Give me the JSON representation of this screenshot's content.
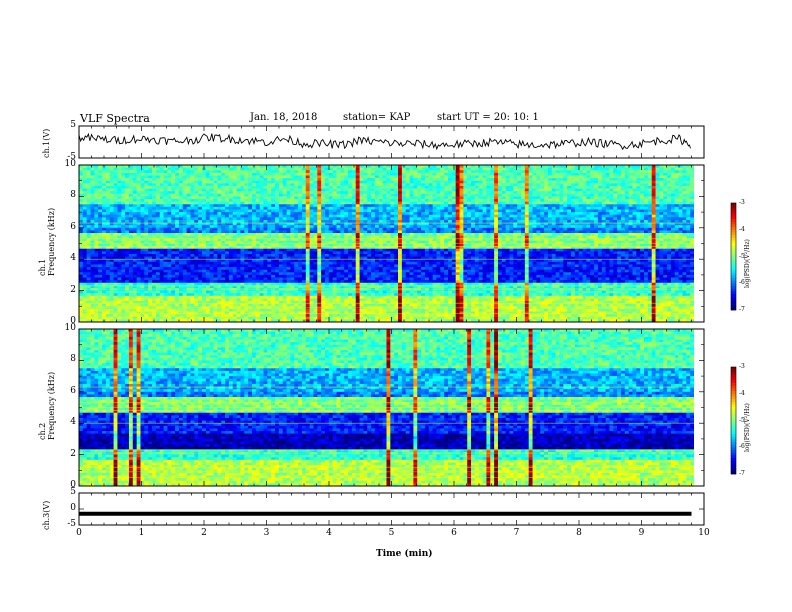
{
  "header": {
    "title": "VLF Spectra",
    "date": "Jan. 18, 2018",
    "station": "station= KAP",
    "start": "start UT = 20: 10: 1"
  },
  "chart_data": [
    {
      "type": "line",
      "ylabel": "ch.1(V)",
      "ylim": [
        -5,
        5
      ],
      "yticks": [
        "5",
        "-5"
      ],
      "x": [
        0,
        0.3,
        0.6,
        0.9,
        1.2,
        1.5,
        1.8,
        2.1,
        2.4,
        2.7,
        3.0,
        3.3,
        3.6,
        3.9,
        4.2,
        4.5,
        4.8,
        5.1,
        5.4,
        5.7,
        6.0,
        6.3,
        6.6,
        6.9,
        7.2,
        7.5,
        7.8,
        8.1,
        8.4,
        8.7,
        9.0,
        9.3,
        9.6,
        9.8
      ],
      "values": [
        1.5,
        1.0,
        0.5,
        1.0,
        0.8,
        0.2,
        0.6,
        1.5,
        1.0,
        0.5,
        0.0,
        1.0,
        -0.5,
        -0.5,
        -1.0,
        0.5,
        0.0,
        -0.5,
        -0.5,
        -1.0,
        -0.8,
        -0.5,
        0.0,
        -0.5,
        -1.0,
        -0.8,
        -0.5,
        0.0,
        -0.5,
        -1.0,
        -0.5,
        0.5,
        1.0,
        -1.0
      ],
      "xlim": [
        0,
        10
      ]
    },
    {
      "type": "heatmap",
      "ylabel": "ch.1\nFrequency (kHz)",
      "ylim": [
        0,
        10
      ],
      "yticks": [
        "0",
        "2",
        "4",
        "6",
        "8",
        "10"
      ],
      "xlim": [
        0,
        10
      ],
      "colorbar": {
        "label": "log(PSD)(V²/Hz)",
        "range": [
          -7,
          -3
        ],
        "ticks": [
          "-3",
          "-4",
          "-5",
          "-6",
          "-7"
        ]
      }
    },
    {
      "type": "heatmap",
      "ylabel": "ch.2\nFrequency (kHz)",
      "ylim": [
        0,
        10
      ],
      "yticks": [
        "0",
        "2",
        "4",
        "6",
        "8",
        "10"
      ],
      "xlim": [
        0,
        10
      ],
      "colorbar": {
        "label": "log(PSD)(V²/Hz)",
        "range": [
          -7,
          -3
        ],
        "ticks": [
          "-3",
          "-4",
          "-5",
          "-6",
          "-7"
        ]
      }
    },
    {
      "type": "line",
      "ylabel": "ch.3(V)",
      "ylim": [
        -5,
        5
      ],
      "yticks": [
        "5",
        "0",
        "-5"
      ],
      "x": [
        0,
        9.8
      ],
      "values": [
        -1.5,
        -1.5
      ],
      "xlim": [
        0,
        10
      ],
      "xlabel": "Time (min)",
      "xticks": [
        "0",
        "1",
        "2",
        "3",
        "4",
        "5",
        "6",
        "7",
        "8",
        "9",
        "10"
      ]
    }
  ]
}
